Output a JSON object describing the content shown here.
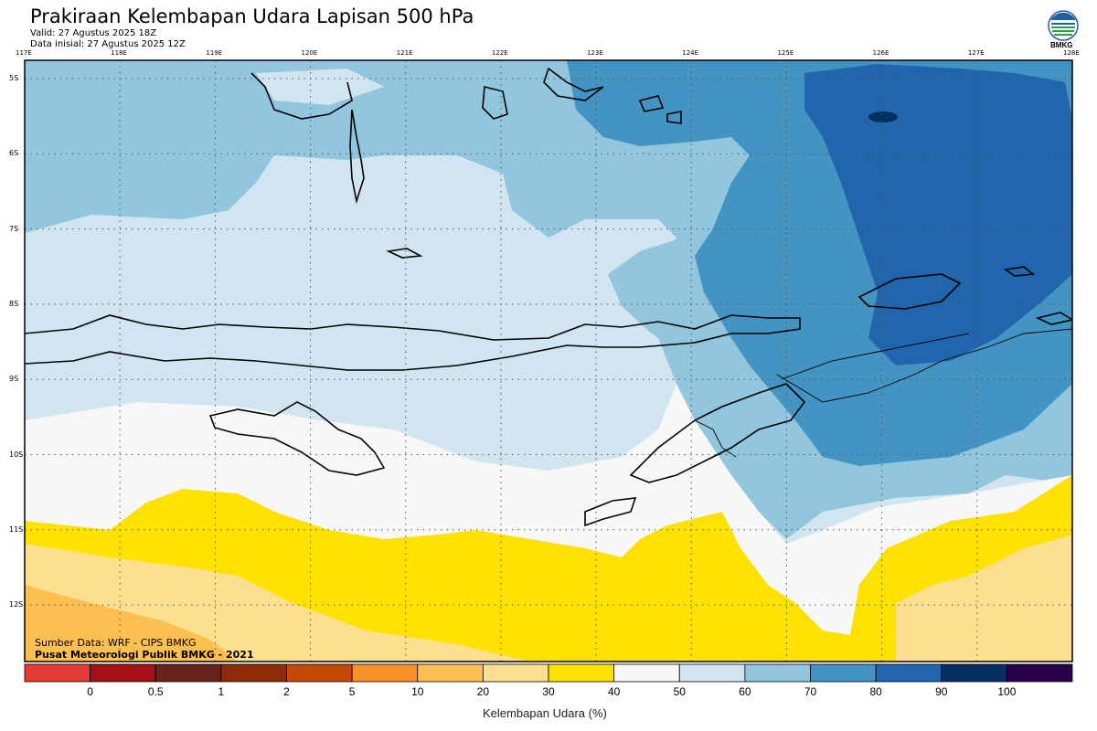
{
  "header": {
    "title": "Prakiraan Kelembapan Udara Lapisan 500 hPa",
    "valid": "Valid: 27 Agustus 2025 18Z",
    "init": "Data inisial: 27 Agustus 2025 12Z",
    "logo_text": "BMKG"
  },
  "map": {
    "lon_labels": [
      "117E",
      "118E",
      "119E",
      "120E",
      "121E",
      "122E",
      "123E",
      "124E",
      "125E",
      "126E",
      "127E",
      "128E"
    ],
    "lat_labels": [
      "5S",
      "6S",
      "7S",
      "8S",
      "9S",
      "10S",
      "11S",
      "12S"
    ],
    "credit_source": "Sumber Data: WRF - CIPS BMKG",
    "credit_publisher": "Pusat Meteorologi Publik BMKG - 2021"
  },
  "colorbar": {
    "title": "Kelembapan Udara (%)",
    "labels": [
      "0",
      "0.5",
      "1",
      "2",
      "5",
      "10",
      "20",
      "30",
      "40",
      "50",
      "60",
      "70",
      "80",
      "90",
      "100"
    ],
    "colors": [
      "#e53935",
      "#a50f15",
      "#67241a",
      "#8e2c0a",
      "#c64a07",
      "#f7922a",
      "#fdbf50",
      "#fde08f",
      "#fde100",
      "#f7f7f7",
      "#d1e5f0",
      "#92c5de",
      "#4393c3",
      "#2166ac",
      "#053061",
      "#2d004b"
    ]
  },
  "colors": {
    "c20_30": "#fde08f",
    "c10_20": "#fdbf50",
    "c30_40": "#fde100",
    "c40_50": "#f7f7f7",
    "c50_60": "#d1e5f0",
    "c60_70": "#92c5de",
    "c70_80": "#4393c3",
    "c80_90": "#2166ac",
    "c90_100": "#053061",
    "coast": "#000000",
    "grid": "#555555"
  }
}
